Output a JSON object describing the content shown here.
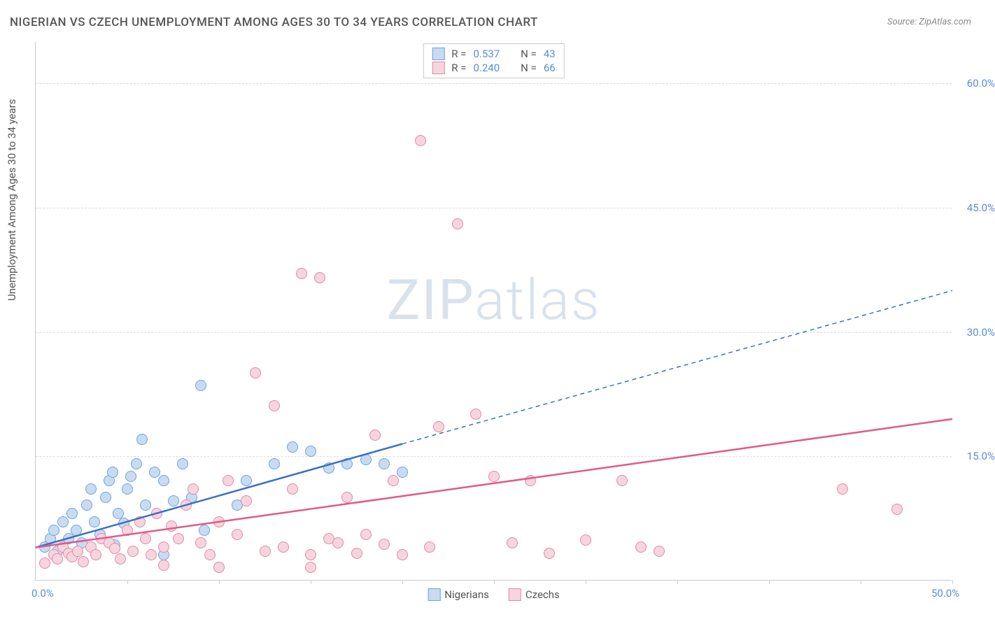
{
  "title": "NIGERIAN VS CZECH UNEMPLOYMENT AMONG AGES 30 TO 34 YEARS CORRELATION CHART",
  "source": "Source: ZipAtlas.com",
  "ylabel": "Unemployment Among Ages 30 to 34 years",
  "watermark": {
    "prefix": "ZIP",
    "suffix": "atlas"
  },
  "chart": {
    "type": "scatter",
    "xlim": [
      0,
      50
    ],
    "ylim": [
      0,
      65
    ],
    "xtick_labels": [
      "0.0%",
      "50.0%"
    ],
    "xtick_positions": [
      0,
      50
    ],
    "xtick_marks": [
      5,
      10,
      15,
      20,
      25,
      30,
      35,
      40,
      45,
      50
    ],
    "ytick_labels": [
      "15.0%",
      "30.0%",
      "45.0%",
      "60.0%"
    ],
    "ytick_positions": [
      15,
      30,
      45,
      60
    ],
    "grid_color": "#dddddd",
    "axis_color": "#cccccc",
    "background_color": "#ffffff",
    "tick_label_color": "#5b8dd6",
    "marker_radius": 8,
    "marker_border_width": 1.2
  },
  "series": [
    {
      "name": "Nigerians",
      "fill_color": "#c7dcf2",
      "border_color": "#6fa3d9",
      "line_color": "#3b6fc4",
      "R": "0.537",
      "N": "43",
      "trend": {
        "x1": 0,
        "y1": 4,
        "x2": 20,
        "y2": 16.5,
        "dash_x2": 50,
        "dash_y2": 35
      },
      "points": [
        [
          0.5,
          4
        ],
        [
          0.8,
          5
        ],
        [
          1,
          6
        ],
        [
          1.2,
          3.5
        ],
        [
          1.5,
          7
        ],
        [
          1.8,
          5
        ],
        [
          2,
          8
        ],
        [
          2.2,
          6
        ],
        [
          2.5,
          4.5
        ],
        [
          2.8,
          9
        ],
        [
          3,
          11
        ],
        [
          3.2,
          7
        ],
        [
          3.5,
          5.5
        ],
        [
          3.8,
          10
        ],
        [
          4,
          12
        ],
        [
          4.2,
          13
        ],
        [
          4.5,
          8
        ],
        [
          5,
          11
        ],
        [
          5.2,
          12.5
        ],
        [
          5.5,
          14
        ],
        [
          5.8,
          17
        ],
        [
          4.3,
          4.2
        ],
        [
          4.8,
          6.8
        ],
        [
          6,
          9
        ],
        [
          6.5,
          13
        ],
        [
          7,
          12
        ],
        [
          7.5,
          9.5
        ],
        [
          8,
          14
        ],
        [
          8.5,
          10
        ],
        [
          9,
          23.5
        ],
        [
          9.2,
          6
        ],
        [
          10,
          1.5
        ],
        [
          11,
          9
        ],
        [
          11.5,
          12
        ],
        [
          13,
          14
        ],
        [
          14,
          16
        ],
        [
          15,
          15.5
        ],
        [
          16,
          13.5
        ],
        [
          17,
          14
        ],
        [
          18,
          14.5
        ],
        [
          19,
          14
        ],
        [
          20,
          13
        ],
        [
          7,
          3
        ]
      ]
    },
    {
      "name": "Czechs",
      "fill_color": "#f7d4de",
      "border_color": "#e08ba5",
      "line_color": "#e05a8a",
      "R": "0.240",
      "N": "66",
      "trend": {
        "x1": 0,
        "y1": 4,
        "x2": 50,
        "y2": 19.5,
        "dash_x2": 50,
        "dash_y2": 19.5
      },
      "points": [
        [
          0.5,
          2
        ],
        [
          1,
          3
        ],
        [
          1.2,
          2.5
        ],
        [
          1.5,
          4
        ],
        [
          1.8,
          3.2
        ],
        [
          2,
          2.8
        ],
        [
          2.3,
          3.5
        ],
        [
          2.6,
          2.2
        ],
        [
          3,
          4
        ],
        [
          3.3,
          3
        ],
        [
          3.6,
          5
        ],
        [
          4,
          4.5
        ],
        [
          4.3,
          3.8
        ],
        [
          4.6,
          2.5
        ],
        [
          5,
          6
        ],
        [
          5.3,
          3.5
        ],
        [
          5.7,
          7
        ],
        [
          6,
          5
        ],
        [
          6.3,
          3
        ],
        [
          6.6,
          8
        ],
        [
          7,
          4
        ],
        [
          7.4,
          6.5
        ],
        [
          7.8,
          5
        ],
        [
          8.2,
          9
        ],
        [
          8.6,
          11
        ],
        [
          9,
          4.5
        ],
        [
          9.5,
          3
        ],
        [
          10,
          7
        ],
        [
          10.5,
          12
        ],
        [
          11,
          5.5
        ],
        [
          11.5,
          9.5
        ],
        [
          12,
          25
        ],
        [
          12.5,
          3.5
        ],
        [
          13,
          21
        ],
        [
          13.5,
          4
        ],
        [
          14,
          11
        ],
        [
          14.5,
          37
        ],
        [
          15,
          3
        ],
        [
          15.5,
          36.5
        ],
        [
          16,
          5
        ],
        [
          16.5,
          4.5
        ],
        [
          17,
          10
        ],
        [
          17.5,
          3.2
        ],
        [
          18,
          5.5
        ],
        [
          18.5,
          17.5
        ],
        [
          19,
          4.3
        ],
        [
          19.5,
          12
        ],
        [
          20,
          3
        ],
        [
          21,
          53
        ],
        [
          21.5,
          4
        ],
        [
          22,
          18.5
        ],
        [
          23,
          43
        ],
        [
          24,
          20
        ],
        [
          25,
          12.5
        ],
        [
          26,
          4.5
        ],
        [
          27,
          12
        ],
        [
          28,
          3.2
        ],
        [
          30,
          4.8
        ],
        [
          32,
          12
        ],
        [
          33,
          4
        ],
        [
          34,
          3.5
        ],
        [
          44,
          11
        ],
        [
          47,
          8.5
        ],
        [
          10,
          1.5
        ],
        [
          7,
          1.8
        ],
        [
          15,
          1.5
        ]
      ]
    }
  ],
  "stats_box": {
    "rows": [
      {
        "swatch_idx": 0,
        "r_label": "R =",
        "r_val": "0.537",
        "n_label": "N =",
        "n_val": "43"
      },
      {
        "swatch_idx": 1,
        "r_label": "R =",
        "r_val": "0.240",
        "n_label": "N =",
        "n_val": "66"
      }
    ]
  },
  "bottom_legend": [
    {
      "swatch_idx": 0,
      "label": "Nigerians"
    },
    {
      "swatch_idx": 1,
      "label": "Czechs"
    }
  ]
}
